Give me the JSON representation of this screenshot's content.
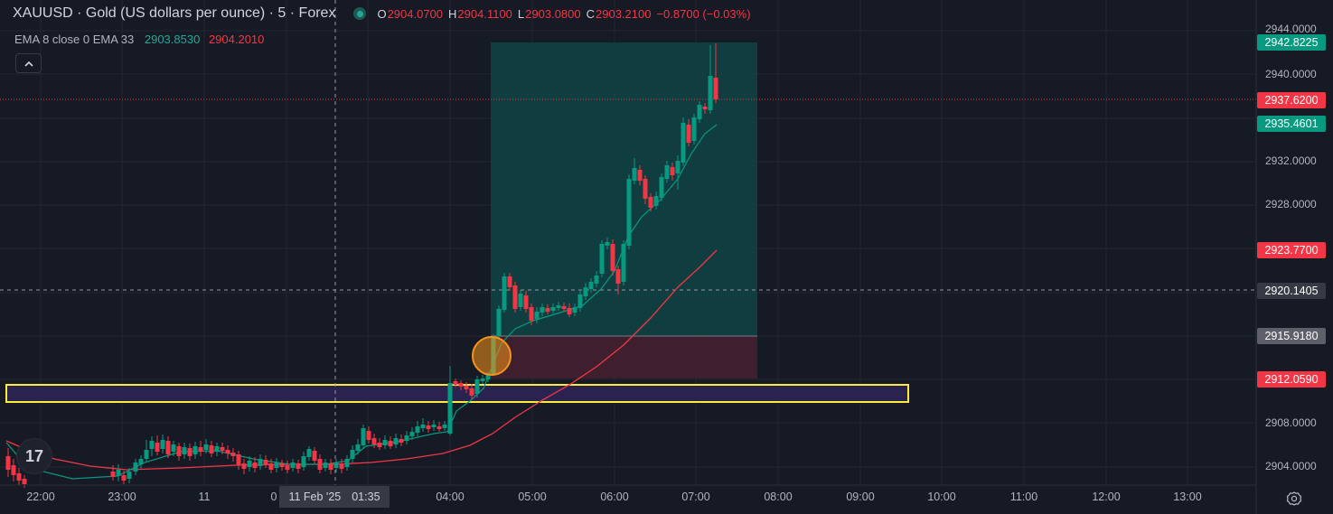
{
  "symbol": {
    "title": "XAUUSD · Gold (US dollars per ounce) · 5 · Forex",
    "open_label": "O",
    "open": "2904.0700",
    "high_label": "H",
    "high": "2904.1100",
    "low_label": "L",
    "low": "2903.0800",
    "close_label": "C",
    "close": "2903.2100",
    "change": "−0.8700 (−0.03%)"
  },
  "indicator": {
    "label": "EMA 8 close 0 EMA 33",
    "ema_fast_value": "2903.8530",
    "ema_slow_value": "2904.2010"
  },
  "collapse_icon": "chevron-up-icon",
  "logo_text": "17",
  "price_axis": {
    "ticks": [
      "2944.0000",
      "2940.0000",
      "2932.0000",
      "2928.0000",
      "2908.0000",
      "2904.0000"
    ],
    "tags": [
      {
        "value": "2942.8225",
        "color": "#089981"
      },
      {
        "value": "2937.6200",
        "color": "#f23645"
      },
      {
        "value": "2935.4601",
        "color": "#089981"
      },
      {
        "value": "2923.7700",
        "color": "#f23645"
      },
      {
        "value": "2920.1405",
        "color": "#363a45"
      },
      {
        "value": "2915.9180",
        "color": "#5d606b"
      },
      {
        "value": "2912.0590",
        "color": "#f23645"
      }
    ]
  },
  "time_axis": {
    "labels": [
      "22:00",
      "23:00",
      "11",
      "0",
      "04:00",
      "05:00",
      "06:00",
      "07:00",
      "08:00",
      "09:00",
      "10:00",
      "11:00",
      "12:00",
      "13:00"
    ],
    "crosshair_date": "11 Feb '25",
    "crosshair_time": "01:35"
  },
  "colors": {
    "up": "#089981",
    "down": "#f23645",
    "ema_fast": "#089981",
    "ema_slow": "#f23645",
    "profit_zone": "#0f4a48",
    "loss_zone": "#4a2130",
    "support_zone_fill": "#3d2a6b",
    "support_zone_border": "#ffeb3b",
    "entry_circle": "#f7931a"
  }
}
